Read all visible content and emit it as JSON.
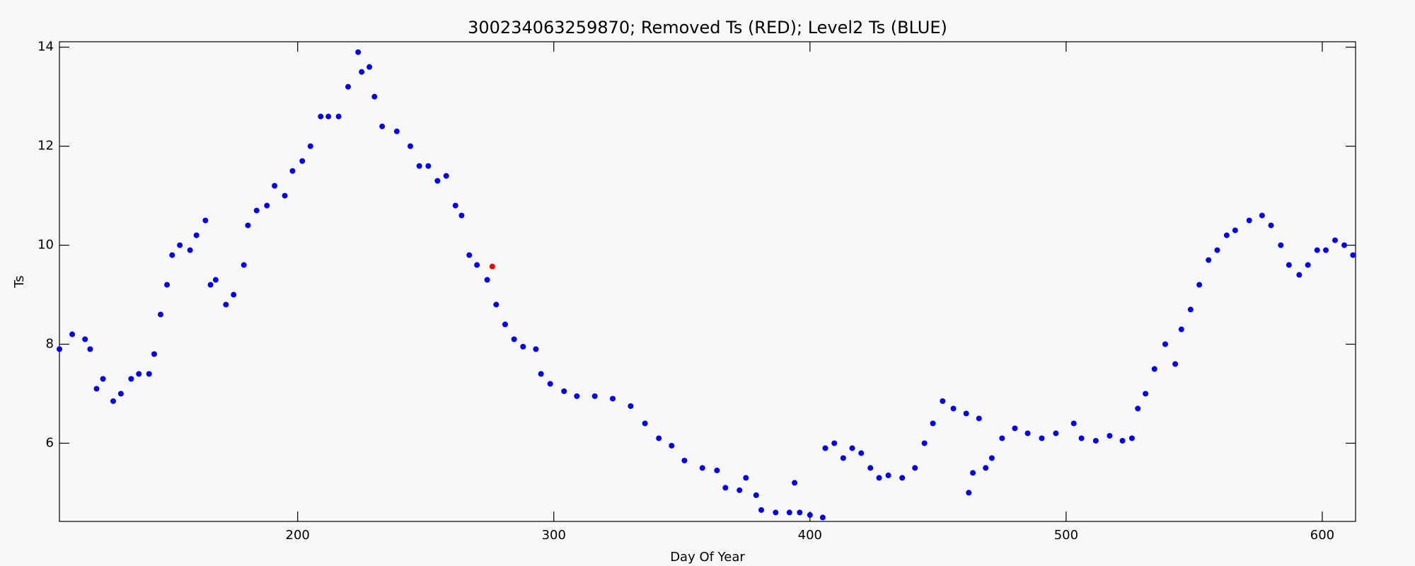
{
  "chart_data": {
    "type": "scatter",
    "title": "300234063259870; Removed Ts (RED); Level2 Ts (BLUE)",
    "x_label": "Day Of Year",
    "y_label": "Ts",
    "xlim": [
      107,
      613
    ],
    "ylim": [
      4.42,
      14.11
    ],
    "xticks": [
      200,
      300,
      400,
      500,
      600
    ],
    "yticks": [
      6,
      8,
      10,
      12,
      14
    ],
    "series": [
      {
        "name": "Level2 Ts",
        "color": "#0000ee",
        "x": [
          107,
          112,
          117,
          119,
          121.5,
          124,
          128,
          131,
          135,
          138,
          142,
          144,
          146.5,
          149,
          151,
          154,
          158,
          160.5,
          164,
          166,
          168,
          172,
          175,
          179,
          180.6,
          184,
          188,
          191,
          195,
          198,
          201.8,
          205,
          209,
          212,
          216,
          219.7,
          223.6,
          225,
          228,
          230,
          233,
          238.7,
          244,
          247.5,
          251,
          254.6,
          258,
          261.6,
          264,
          267,
          270,
          274,
          277.5,
          281,
          284.5,
          288,
          293,
          295,
          298.6,
          304,
          309,
          316,
          323,
          330,
          335.6,
          341,
          346,
          351,
          358,
          363.7,
          367,
          372.5,
          375,
          379,
          381,
          386.6,
          392,
          394,
          396,
          400,
          405,
          406,
          409.5,
          413,
          416.5,
          420,
          423.6,
          427,
          430.6,
          436,
          441,
          444.7,
          448,
          451.8,
          456,
          461,
          462,
          463.6,
          466,
          468.6,
          471,
          475,
          480,
          485,
          490.5,
          496,
          503,
          506,
          511.6,
          517,
          522,
          525.7,
          528,
          531,
          534.5,
          538.7,
          542.6,
          545,
          548.6,
          552,
          555.6,
          559,
          562.7,
          566,
          571.5,
          576.5,
          580,
          583.8,
          587,
          591,
          594.4,
          598,
          601.4,
          605,
          608.6,
          612
        ],
        "values": [
          7.9,
          8.2,
          8.1,
          7.9,
          7.1,
          7.3,
          6.85,
          7.0,
          7.3,
          7.4,
          7.4,
          7.8,
          8.6,
          9.2,
          9.8,
          10.0,
          9.9,
          10.2,
          10.5,
          9.2,
          9.3,
          8.8,
          9.0,
          9.6,
          10.4,
          10.7,
          10.8,
          11.2,
          11.0,
          11.5,
          11.7,
          12.0,
          12.6,
          12.6,
          12.6,
          13.2,
          13.9,
          13.5,
          13.6,
          13.0,
          12.4,
          12.3,
          12.0,
          11.6,
          11.6,
          11.3,
          11.4,
          10.8,
          10.6,
          9.8,
          9.6,
          9.3,
          8.8,
          8.4,
          8.1,
          7.95,
          7.9,
          7.4,
          7.2,
          7.05,
          6.95,
          6.95,
          6.9,
          6.75,
          6.4,
          6.1,
          5.95,
          5.65,
          5.5,
          5.45,
          5.1,
          5.05,
          5.3,
          4.95,
          4.65,
          4.6,
          4.6,
          5.2,
          4.6,
          4.55,
          4.5,
          5.9,
          6.0,
          5.7,
          5.9,
          5.8,
          5.5,
          5.3,
          5.35,
          5.3,
          5.5,
          6.0,
          6.4,
          6.85,
          6.7,
          6.6,
          5.0,
          5.4,
          6.5,
          5.5,
          5.7,
          6.1,
          6.3,
          6.2,
          6.1,
          6.2,
          6.4,
          6.1,
          6.05,
          6.15,
          6.05,
          6.1,
          6.7,
          7.0,
          7.5,
          8.0,
          7.6,
          8.3,
          8.7,
          9.2,
          9.7,
          9.9,
          10.2,
          10.3,
          10.5,
          10.6,
          10.4,
          10.0,
          9.6,
          9.4,
          9.6,
          9.9,
          9.9,
          10.1,
          10.0,
          9.8
        ]
      },
      {
        "name": "Removed Ts",
        "color": "#ee0000",
        "x": [
          276
        ],
        "values": [
          9.57
        ]
      }
    ]
  }
}
